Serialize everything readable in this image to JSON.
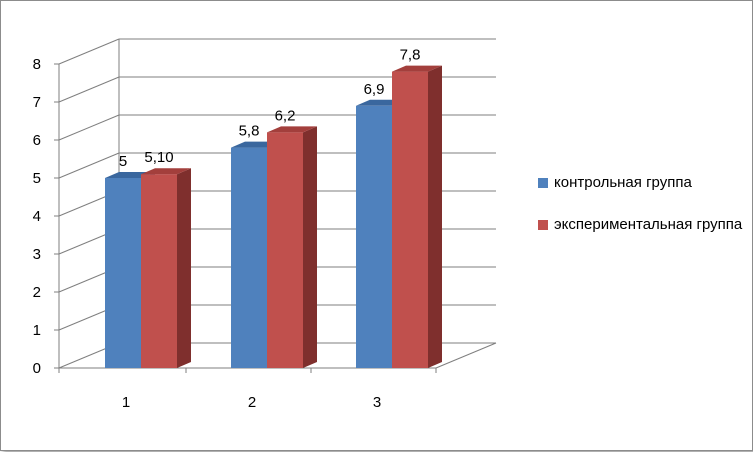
{
  "chart_data": {
    "type": "bar",
    "categories": [
      "1",
      "2",
      "3"
    ],
    "series": [
      {
        "name": "контрольная группа",
        "values": [
          5,
          5.8,
          6.9
        ],
        "labels": [
          "5",
          "5,8",
          "6,9"
        ]
      },
      {
        "name": "экспериментальная группа",
        "values": [
          5.1,
          6.2,
          7.8
        ],
        "labels": [
          "5,10",
          "6,2",
          "7,8"
        ]
      }
    ],
    "yticks": [
      "0",
      "1",
      "2",
      "3",
      "4",
      "5",
      "6",
      "7",
      "8"
    ],
    "ylim": [
      0,
      8
    ],
    "grid": true,
    "legend_position": "right",
    "colors": {
      "series1": {
        "front": "#4F81BD",
        "side": "#2F5A8C",
        "top": "#3A679E"
      },
      "series2": {
        "front": "#C0504D",
        "side": "#7F2F2D",
        "top": "#A33F3C"
      }
    }
  }
}
